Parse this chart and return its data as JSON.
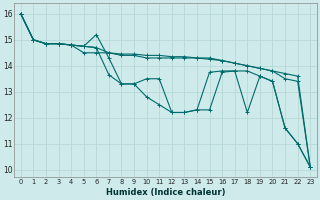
{
  "xlabel": "Humidex (Indice chaleur)",
  "xlim": [
    -0.5,
    23.5
  ],
  "ylim": [
    9.7,
    16.4
  ],
  "bg_color": "#ceeaea",
  "line_color": "#006b6b",
  "grid_color": "#b8d8d8",
  "series": [
    [
      16.0,
      15.0,
      14.85,
      14.85,
      14.8,
      14.75,
      14.7,
      14.5,
      14.45,
      14.45,
      14.4,
      14.4,
      14.35,
      14.35,
      14.3,
      14.25,
      14.2,
      14.1,
      14.0,
      13.9,
      13.8,
      13.7,
      13.6,
      10.1
    ],
    [
      16.0,
      15.0,
      14.85,
      14.85,
      14.8,
      14.75,
      15.2,
      14.3,
      13.3,
      13.3,
      13.5,
      13.5,
      12.2,
      12.2,
      12.3,
      13.75,
      13.8,
      13.8,
      12.2,
      13.6,
      13.4,
      11.6,
      11.0,
      10.1
    ],
    [
      16.0,
      15.0,
      14.85,
      14.85,
      14.8,
      14.75,
      14.7,
      13.65,
      13.3,
      13.3,
      12.8,
      12.5,
      12.2,
      12.2,
      12.3,
      12.3,
      13.75,
      13.8,
      13.8,
      13.6,
      13.4,
      11.6,
      11.0,
      10.1
    ],
    [
      16.0,
      15.0,
      14.85,
      14.85,
      14.8,
      14.5,
      14.5,
      14.5,
      14.4,
      14.4,
      14.3,
      14.3,
      14.3,
      14.3,
      14.3,
      14.3,
      14.2,
      14.1,
      14.0,
      13.9,
      13.8,
      13.5,
      13.4,
      10.1
    ]
  ],
  "xtick_labels": [
    "0",
    "1",
    "2",
    "3",
    "4",
    "5",
    "6",
    "7",
    "8",
    "9",
    "10",
    "11",
    "12",
    "13",
    "14",
    "15",
    "16",
    "17",
    "18",
    "19",
    "20",
    "21",
    "22",
    "23"
  ],
  "ytick_labels": [
    "10",
    "11",
    "12",
    "13",
    "14",
    "15",
    "16"
  ],
  "yticks": [
    10,
    11,
    12,
    13,
    14,
    15,
    16
  ],
  "xticks": [
    0,
    1,
    2,
    3,
    4,
    5,
    6,
    7,
    8,
    9,
    10,
    11,
    12,
    13,
    14,
    15,
    16,
    17,
    18,
    19,
    20,
    21,
    22,
    23
  ]
}
